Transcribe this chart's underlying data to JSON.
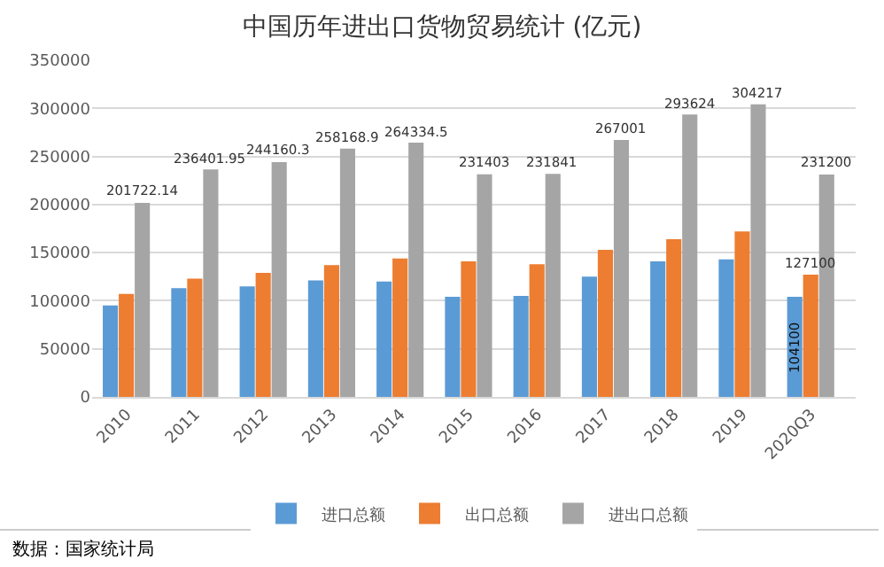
{
  "chart_data": {
    "type": "bar",
    "title": "中国历年进出口货物贸易统计 (亿元)",
    "categories": [
      "2010",
      "2011",
      "2012",
      "2013",
      "2014",
      "2015",
      "2016",
      "2017",
      "2018",
      "2019",
      "2020Q3"
    ],
    "series": [
      {
        "name": "进口总额",
        "color": "#5b9bd5",
        "values": [
          95000,
          113000,
          115000,
          121000,
          120000,
          104000,
          105000,
          125000,
          141000,
          143000,
          104100
        ],
        "value_labels": [
          null,
          null,
          null,
          null,
          null,
          null,
          null,
          null,
          null,
          null,
          "104100"
        ]
      },
      {
        "name": "出口总额",
        "color": "#ed7d31",
        "values": [
          107000,
          123000,
          129000,
          137000,
          144000,
          141000,
          138000,
          153000,
          164000,
          172000,
          127100
        ],
        "value_labels": [
          null,
          null,
          null,
          null,
          null,
          null,
          null,
          null,
          null,
          null,
          "127100"
        ]
      },
      {
        "name": "进出口总额",
        "color": "#a5a5a5",
        "values": [
          201722.14,
          236401.95,
          244160.3,
          258168.9,
          264334.5,
          231403,
          231841,
          267001,
          293624,
          304217,
          231200
        ],
        "value_labels": [
          "201722.14",
          "236401.95",
          "244160.3",
          "258168.9",
          "264334.5",
          "231403",
          "231841",
          "267001",
          "293624",
          "304217",
          "231200"
        ]
      }
    ],
    "ylim": [
      0,
      350000
    ],
    "yticks": [
      0,
      50000,
      100000,
      150000,
      200000,
      250000,
      300000,
      350000
    ],
    "grid": "y",
    "legend": "bottom",
    "annotations": [
      "数据：国家统计局"
    ]
  }
}
